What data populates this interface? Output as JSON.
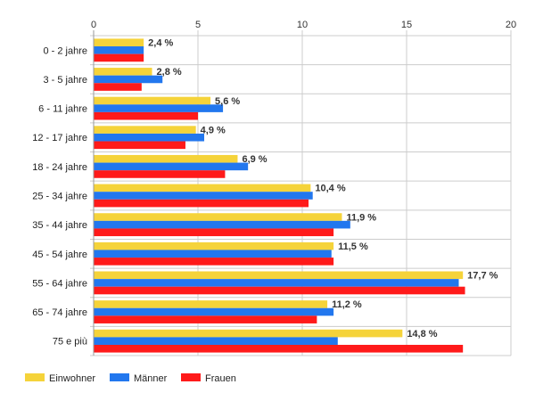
{
  "chart_data": {
    "type": "bar",
    "orientation": "horizontal",
    "categories": [
      "0 - 2 jahre",
      "3 - 5 jahre",
      "6 - 11 jahre",
      "12 - 17 jahre",
      "18 - 24 jahre",
      "25 - 34 jahre",
      "35 - 44 jahre",
      "45 - 54 jahre",
      "55 - 64 jahre",
      "65 - 74 jahre",
      "75 e più"
    ],
    "series": [
      {
        "name": "Einwohner",
        "color": "#f5d33a",
        "values": [
          2.4,
          2.8,
          5.6,
          4.9,
          6.9,
          10.4,
          11.9,
          11.5,
          17.7,
          11.2,
          14.8
        ]
      },
      {
        "name": "Männer",
        "color": "#2277ee",
        "values": [
          2.4,
          3.3,
          6.2,
          5.3,
          7.4,
          10.5,
          12.3,
          11.4,
          17.5,
          11.5,
          11.7
        ]
      },
      {
        "name": "Frauen",
        "color": "#ff1a1a",
        "values": [
          2.4,
          2.3,
          5.0,
          4.4,
          6.3,
          10.3,
          11.5,
          11.5,
          17.8,
          10.7,
          17.7
        ]
      }
    ],
    "data_labels": [
      "2,4 %",
      "2,8 %",
      "5,6 %",
      "4,9 %",
      "6,9 %",
      "10,4 %",
      "11,9 %",
      "11,5 %",
      "17,7 %",
      "11,2 %",
      "14,8 %"
    ],
    "xlim": [
      0,
      20
    ],
    "x_ticks": [
      0,
      5,
      10,
      15,
      20
    ],
    "x_tick_labels": [
      "0",
      "5",
      "10",
      "15",
      "20"
    ],
    "x_axis_position": "top",
    "grid": true,
    "legend_position": "bottom-left",
    "title": "",
    "xlabel": "",
    "ylabel": ""
  }
}
